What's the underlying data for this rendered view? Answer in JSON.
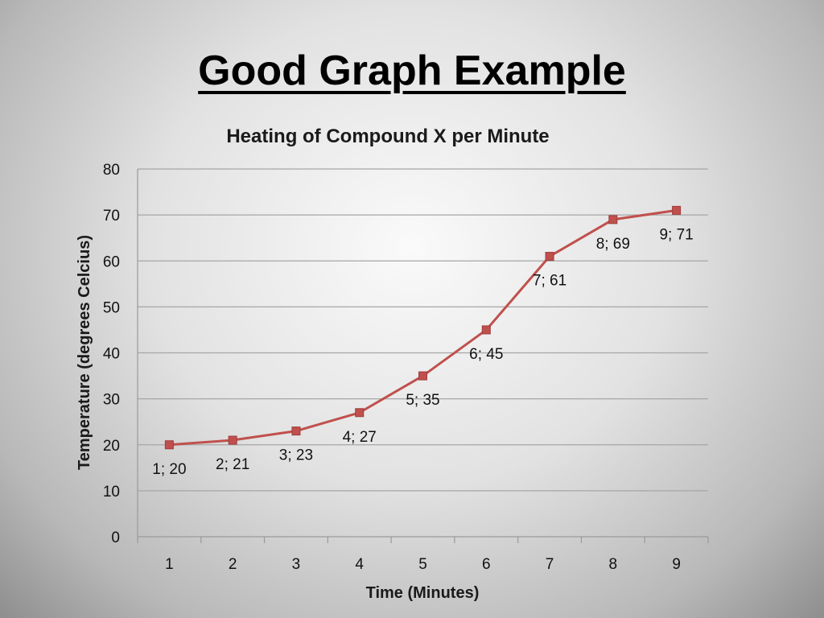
{
  "slide": {
    "title": "Good Graph Example"
  },
  "colors": {
    "series": "#c0504d",
    "grid": "#a6a6a6"
  },
  "chart_data": {
    "type": "line",
    "title": "Heating of Compound X per Minute",
    "xlabel": "Time (Minutes)",
    "ylabel": "Temperature (degrees Celcius)",
    "categories": [
      "1",
      "2",
      "3",
      "4",
      "5",
      "6",
      "7",
      "8",
      "9"
    ],
    "ylim": [
      0,
      80
    ],
    "yticks": [
      0,
      10,
      20,
      30,
      40,
      50,
      60,
      70,
      80
    ],
    "grid": true,
    "marker": "square",
    "series": [
      {
        "values": [
          20,
          21,
          23,
          27,
          35,
          45,
          61,
          69,
          71
        ],
        "data_labels": [
          "1; 20",
          "2; 21",
          "3; 23",
          "4; 27",
          "5; 35",
          "6; 45",
          "7; 61",
          "8; 69",
          "9; 71"
        ]
      }
    ]
  }
}
